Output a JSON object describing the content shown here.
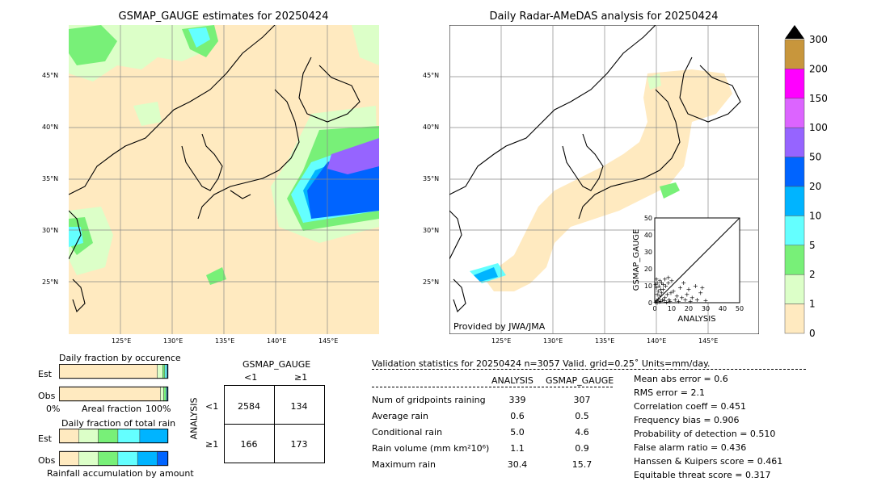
{
  "left_map": {
    "title": "GSMAP_GAUGE estimates for 20250424",
    "lat_labels": [
      "45°N",
      "40°N",
      "35°N",
      "30°N",
      "25°N"
    ],
    "lon_labels": [
      "125°E",
      "130°E",
      "135°E",
      "140°E",
      "145°E"
    ]
  },
  "right_map": {
    "title": "Daily Radar-AMeDAS analysis for 20250424",
    "lat_labels": [
      "45°N",
      "40°N",
      "35°N",
      "30°N",
      "25°N"
    ],
    "lon_labels": [
      "125°E",
      "130°E",
      "135°E",
      "140°E",
      "145°E"
    ],
    "credit": "Provided by JWA/JMA"
  },
  "colorbar": {
    "ticks": [
      "300",
      "200",
      "150",
      "100",
      "50",
      "20",
      "10",
      "5",
      "2",
      "1",
      "0"
    ],
    "colors": [
      "#c8963c",
      "#ff00ff",
      "#dc64ff",
      "#9664ff",
      "#0064ff",
      "#00b4ff",
      "#64ffff",
      "#78f078",
      "#dcffc8",
      "#ffeac0"
    ]
  },
  "chart_data": [
    {
      "type": "scatter",
      "xlabel": "ANALYSIS",
      "ylabel": "GSMAP_GAUGE",
      "xlim": [
        0,
        50
      ],
      "ylim": [
        0,
        50
      ],
      "xticks": [
        "0",
        "10",
        "20",
        "30",
        "40",
        "50"
      ],
      "yticks": [
        "0",
        "10",
        "20",
        "30",
        "40",
        "50"
      ],
      "points": [
        [
          0.5,
          0.5
        ],
        [
          1,
          1.5
        ],
        [
          1.5,
          0.3
        ],
        [
          2,
          2.5
        ],
        [
          2.5,
          0.8
        ],
        [
          3,
          4
        ],
        [
          3.5,
          1
        ],
        [
          4,
          6
        ],
        [
          4.5,
          2
        ],
        [
          5,
          8
        ],
        [
          5.5,
          1.5
        ],
        [
          6,
          3
        ],
        [
          6.5,
          10
        ],
        [
          7,
          0.5
        ],
        [
          7.5,
          5
        ],
        [
          8,
          12
        ],
        [
          8.5,
          2
        ],
        [
          9,
          1
        ],
        [
          9.5,
          6
        ],
        [
          10,
          13
        ],
        [
          1,
          9
        ],
        [
          1.5,
          12
        ],
        [
          2,
          7
        ],
        [
          0.5,
          11
        ],
        [
          1,
          14
        ],
        [
          3,
          13
        ],
        [
          4,
          12
        ],
        [
          2.5,
          10
        ],
        [
          1.5,
          5
        ],
        [
          3.5,
          8
        ],
        [
          11,
          7
        ],
        [
          12,
          2
        ],
        [
          13,
          4
        ],
        [
          14,
          1
        ],
        [
          15,
          9
        ],
        [
          16,
          3
        ],
        [
          17,
          12
        ],
        [
          18,
          2
        ],
        [
          19,
          5
        ],
        [
          20,
          8
        ],
        [
          21,
          1
        ],
        [
          22,
          3
        ],
        [
          24,
          10
        ],
        [
          25,
          2
        ],
        [
          27,
          6
        ],
        [
          28,
          9
        ],
        [
          30,
          1.5
        ],
        [
          6,
          14
        ],
        [
          8,
          15
        ],
        [
          5,
          11
        ]
      ]
    },
    {
      "type": "bar",
      "title": "Daily fraction by occurence",
      "categories": [
        "Est",
        "Obs"
      ],
      "xlabel": "Areal fraction",
      "ticks": [
        "0%",
        "100%"
      ],
      "series": [
        {
          "values": [
            0.9,
            0.93
          ],
          "color": "#ffeac0"
        },
        {
          "values": [
            0.05,
            0.03
          ],
          "color": "#dcffc8"
        },
        {
          "values": [
            0.02,
            0.02
          ],
          "color": "#78f078"
        },
        {
          "values": [
            0.02,
            0.01
          ],
          "color": "#64ffff"
        },
        {
          "values": [
            0.01,
            0.01
          ],
          "color": "#0064ff"
        }
      ]
    },
    {
      "type": "bar",
      "title": "Daily fraction of total rain",
      "categories": [
        "Est",
        "Obs"
      ],
      "xlabel": "Rainfall accumulation by amount",
      "series": [
        {
          "values": [
            0.18,
            0.18
          ],
          "color": "#ffeac0"
        },
        {
          "values": [
            0.18,
            0.18
          ],
          "color": "#dcffc8"
        },
        {
          "values": [
            0.18,
            0.18
          ],
          "color": "#78f078"
        },
        {
          "values": [
            0.2,
            0.18
          ],
          "color": "#64ffff"
        },
        {
          "values": [
            0.26,
            0.18
          ],
          "color": "#00b4ff"
        },
        {
          "values": [
            0.0,
            0.1
          ],
          "color": "#0064ff"
        }
      ]
    },
    {
      "type": "table",
      "title": "GSMAP_GAUGE",
      "col_headers": [
        "<1",
        "≥1"
      ],
      "row_title": "ANALYSIS",
      "row_headers": [
        "<1",
        "≥1"
      ],
      "cells": [
        [
          "2584",
          "134"
        ],
        [
          "166",
          "173"
        ]
      ]
    }
  ],
  "validation": {
    "header": "Validation statistics for 20250424  n=3057 Valid. grid=0.25˚ Units=mm/day.",
    "col_analysis": "ANALYSIS",
    "col_gsmap": "GSMAP_GAUGE",
    "rows": [
      {
        "label": "Num of gridpoints raining",
        "analysis": "339",
        "gsmap": "307"
      },
      {
        "label": "Average rain",
        "analysis": "0.6",
        "gsmap": "0.5"
      },
      {
        "label": "Conditional rain",
        "analysis": "5.0",
        "gsmap": "4.6"
      },
      {
        "label": "Rain volume (mm km²10⁶)",
        "analysis": "1.1",
        "gsmap": "0.9"
      },
      {
        "label": "Maximum rain",
        "analysis": "30.4",
        "gsmap": "15.7"
      }
    ],
    "scores": [
      "Mean abs error =    0.6",
      "RMS error =    2.1",
      "Correlation coeff =  0.451",
      "Frequency bias =  0.906",
      "Probability of detection =  0.510",
      "False alarm ratio =  0.436",
      "Hanssen & Kuipers score =  0.461",
      "Equitable threat score =  0.317"
    ]
  }
}
